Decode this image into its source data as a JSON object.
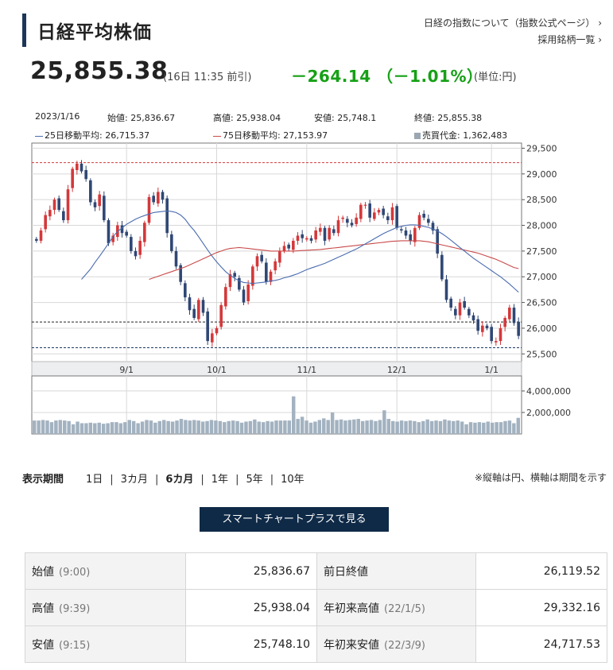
{
  "header": {
    "title": "日経平均株価",
    "link_index": "日経の指数について（指数公式ページ） ›",
    "link_components": "採用銘柄一覧 ›"
  },
  "quote": {
    "price": "25,855.38",
    "timestamp": "(16日 11:35 前引)",
    "change": "－264.14 （－1.01%）",
    "unit": "(単位:円)"
  },
  "info": {
    "date": "2023/1/16",
    "open": "始値: 25,836.67",
    "high": "高値: 25,938.04",
    "low": "安値: 25,748.1",
    "close": "終値: 25,855.38",
    "ma25": "25日移動平均: 26,715.37",
    "ma75": "75日移動平均: 27,153.97",
    "turnover": "売買代金: 1,362,483"
  },
  "colors": {
    "up": "#d4383a",
    "down": "#2f4774",
    "ma25": "#4b6cb0",
    "ma75": "#c94a4a",
    "volume": "#a3b2c0",
    "grid": "#d8d8d8",
    "accent": "#16a016",
    "navy": "#0f2a47"
  },
  "chart_data": {
    "type": "candlestick",
    "price_axis": {
      "ylim": [
        25350,
        29600
      ],
      "ticks": [
        "29,500",
        "29,000",
        "28,500",
        "28,000",
        "27,500",
        "27,000",
        "26,500",
        "26,000",
        "25,500"
      ],
      "tick_values": [
        29500,
        29000,
        28500,
        28000,
        27500,
        27000,
        26500,
        26000,
        25500
      ]
    },
    "volume_axis": {
      "ylim": [
        0,
        5400000
      ],
      "ticks": [
        "4,000,000",
        "2,000,000"
      ],
      "tick_values": [
        4000000,
        2000000
      ]
    },
    "x_ticks": [
      {
        "label": "9/1",
        "day": 20
      },
      {
        "label": "10/1",
        "day": 40
      },
      {
        "label": "11/1",
        "day": 60
      },
      {
        "label": "12/1",
        "day": 80
      },
      {
        "label": "1/1",
        "day": 101
      }
    ],
    "reference_lines": [
      {
        "value": 29220,
        "style": "red-dashed"
      },
      {
        "value": 26120,
        "style": "dark-dashed"
      },
      {
        "value": 25620,
        "style": "navy-dashed"
      }
    ],
    "series_closes": [
      27700,
      27900,
      28200,
      28300,
      28500,
      28300,
      28100,
      28700,
      29100,
      29200,
      29050,
      28900,
      28450,
      28350,
      28600,
      28100,
      27650,
      27800,
      28000,
      27850,
      27800,
      27500,
      27400,
      27700,
      28050,
      28550,
      28450,
      28650,
      28500,
      27850,
      27500,
      27200,
      26900,
      26600,
      26350,
      26200,
      26550,
      26300,
      25750,
      25900,
      26000,
      26450,
      26800,
      27050,
      27000,
      26750,
      26500,
      26850,
      27200,
      27400,
      27300,
      26900,
      27100,
      27300,
      27500,
      27600,
      27550,
      27700,
      27800,
      27750,
      27750,
      27700,
      27900,
      27950,
      27700,
      27950,
      27850,
      28100,
      28150,
      28050,
      28000,
      28150,
      28400,
      28400,
      28150,
      28250,
      28300,
      28200,
      28100,
      28350,
      27950,
      27900,
      27800,
      27700,
      27950,
      28200,
      28150,
      28050,
      27900,
      27450,
      26950,
      26550,
      26400,
      26250,
      26500,
      26400,
      26250,
      26150,
      25950,
      26050,
      26000,
      25750,
      25750,
      26000,
      26200,
      26400,
      26100,
      25850
    ],
    "ma25": [
      26950,
      27050,
      27150,
      27280,
      27400,
      27520,
      27650,
      27780,
      27880,
      27950,
      28020,
      28070,
      28120,
      28160,
      28190,
      28220,
      28250,
      28260,
      28270,
      28280,
      28270,
      28250,
      28200,
      28120,
      28000,
      27900,
      27780,
      27650,
      27520,
      27400,
      27290,
      27190,
      27100,
      27030,
      26970,
      26920,
      26890,
      26880,
      26870,
      26880,
      26890,
      26900,
      26920,
      26930,
      26950,
      26980,
      27000,
      27030,
      27060,
      27100,
      27140,
      27170,
      27200,
      27230,
      27260,
      27300,
      27340,
      27380,
      27420,
      27460,
      27500,
      27540,
      27590,
      27640,
      27690,
      27740,
      27790,
      27840,
      27880,
      27920,
      27960,
      27980,
      28000,
      28010,
      28010,
      28000,
      27980,
      27960,
      27930,
      27890,
      27840,
      27780,
      27710,
      27640,
      27570,
      27500,
      27430,
      27360,
      27300,
      27240,
      27180,
      27120,
      27060,
      27000,
      26930,
      26860,
      26780,
      26700
    ],
    "ma75": [
      26950,
      26980,
      27010,
      27040,
      27070,
      27100,
      27130,
      27160,
      27190,
      27230,
      27270,
      27310,
      27350,
      27390,
      27430,
      27470,
      27500,
      27530,
      27550,
      27560,
      27570,
      27560,
      27550,
      27540,
      27530,
      27520,
      27510,
      27500,
      27500,
      27500,
      27500,
      27500,
      27500,
      27505,
      27510,
      27515,
      27520,
      27525,
      27530,
      27540,
      27550,
      27560,
      27570,
      27580,
      27590,
      27600,
      27610,
      27620,
      27630,
      27640,
      27650,
      27660,
      27670,
      27680,
      27690,
      27695,
      27700,
      27700,
      27700,
      27700,
      27700,
      27690,
      27680,
      27660,
      27640,
      27620,
      27600,
      27580,
      27560,
      27540,
      27520,
      27500,
      27480,
      27460,
      27430,
      27400,
      27370,
      27340,
      27300,
      27260,
      27220,
      27180,
      27160
    ],
    "volumes": [
      1250000,
      1250000,
      1300000,
      1250000,
      1100000,
      1250000,
      1300000,
      1250000,
      1200000,
      900000,
      1150000,
      1000000,
      1000000,
      1050000,
      1000000,
      1050000,
      950000,
      1000000,
      1100000,
      1100000,
      1000000,
      1100000,
      1300000,
      1200000,
      1000000,
      1150000,
      1300000,
      1250000,
      1050000,
      1200000,
      1300000,
      1200000,
      1150000,
      1250000,
      1400000,
      1300000,
      1250000,
      1300000,
      1250000,
      1150000,
      1200000,
      1300000,
      1250000,
      1200000,
      1100000,
      1200000,
      1250000,
      1200000,
      1050000,
      1150000,
      1200000,
      1350000,
      1150000,
      1100000,
      1200000,
      1150000,
      1250000,
      1250000,
      1250000,
      1250000,
      3500000,
      1400000,
      1600000,
      1250000,
      1050000,
      1150000,
      1300000,
      1450000,
      1300000,
      2000000,
      1300000,
      1350000,
      1250000,
      1300000,
      1350000,
      1400000,
      1200000,
      1250000,
      1300000,
      1200000,
      1300000,
      2200000,
      1400000,
      1200000,
      1150000,
      1250000,
      1200000,
      1250000,
      1200000,
      1100000,
      1200000,
      1350000,
      1200000,
      1250000,
      1200000,
      1350000,
      1250000,
      1200000,
      1250000,
      1150000,
      900000,
      1100000,
      1050000,
      1100000,
      1050000,
      1150000,
      1050000,
      1100000,
      1100000,
      1200000,
      1250000,
      1000000,
      1500000
    ]
  },
  "periods": {
    "label": "表示期間",
    "options": [
      "1日",
      "3カ月",
      "6カ月",
      "1年",
      "5年",
      "10年"
    ],
    "active": 2
  },
  "note": "※縦軸は円、横軸は期間を示す",
  "smart_button": "スマートチャートプラスで見る",
  "summary": {
    "rows": [
      {
        "label": "始値",
        "time": "(9:00)",
        "value": "25,836.67",
        "label2": "前日終値",
        "time2": "",
        "value2": "26,119.52"
      },
      {
        "label": "高値",
        "time": "(9:39)",
        "value": "25,938.04",
        "label2": "年初来高値",
        "time2": "(22/1/5)",
        "value2": "29,332.16"
      },
      {
        "label": "安値",
        "time": "(9:15)",
        "value": "25,748.10",
        "label2": "年初来安値",
        "time2": "(22/3/9)",
        "value2": "24,717.53"
      }
    ]
  }
}
